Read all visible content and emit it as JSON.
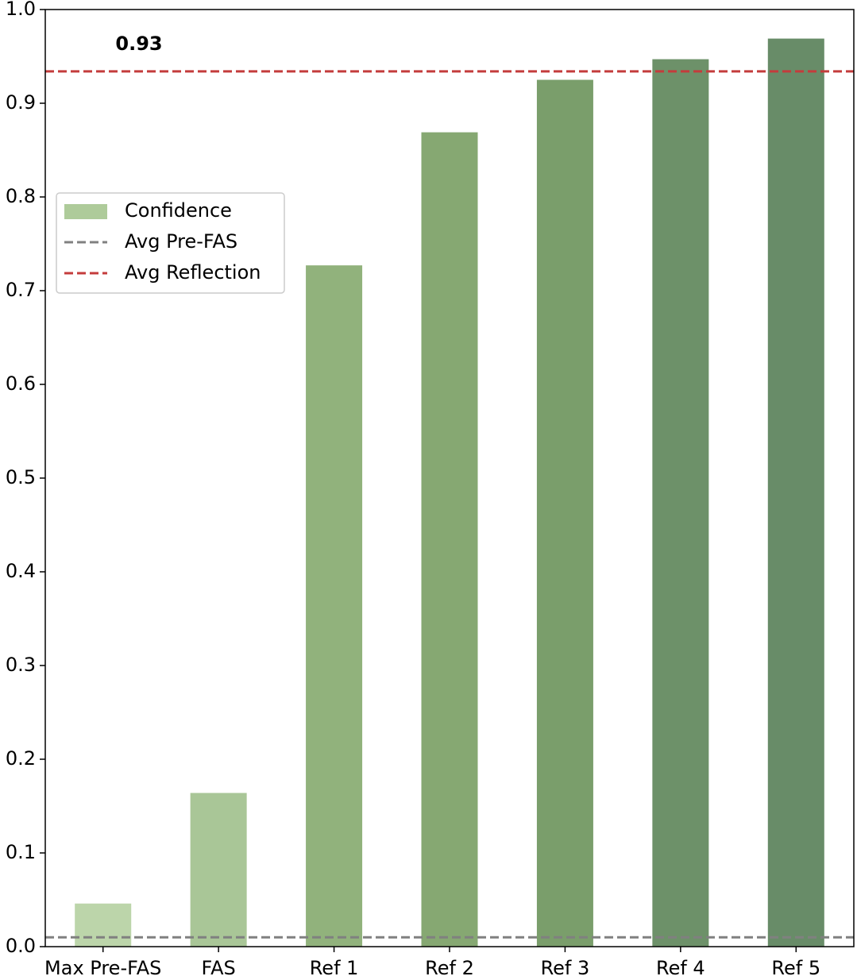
{
  "chart_data": {
    "type": "bar",
    "categories": [
      "Max Pre-FAS",
      "FAS",
      "Ref 1",
      "Ref 2",
      "Ref 3",
      "Ref 4",
      "Ref 5"
    ],
    "series": [
      {
        "name": "Confidence",
        "color": "#aecb9a",
        "colors": [
          "#bcd5aa",
          "#a9c697",
          "#91b27c",
          "#86a872",
          "#7a9e6b",
          "#6d9169",
          "#688c68"
        ],
        "values": [
          0.046,
          0.164,
          0.727,
          0.869,
          0.925,
          0.947,
          0.969
        ]
      }
    ],
    "hlines": [
      {
        "name": "Avg Pre-FAS",
        "value": 0.01,
        "color": "#808080"
      },
      {
        "name": "Avg Reflection",
        "value": 0.934,
        "color": "#c43c3c",
        "label": "0.93"
      }
    ],
    "ylim": [
      0,
      1
    ],
    "yticks": [
      {
        "value": 0,
        "label": "0.0"
      },
      0.1,
      0.2,
      0.3,
      0.4,
      0.5,
      0.6,
      0.7,
      0.8,
      0.9,
      {
        "value": 1,
        "label": "1.0"
      }
    ],
    "legend": "upper left"
  }
}
